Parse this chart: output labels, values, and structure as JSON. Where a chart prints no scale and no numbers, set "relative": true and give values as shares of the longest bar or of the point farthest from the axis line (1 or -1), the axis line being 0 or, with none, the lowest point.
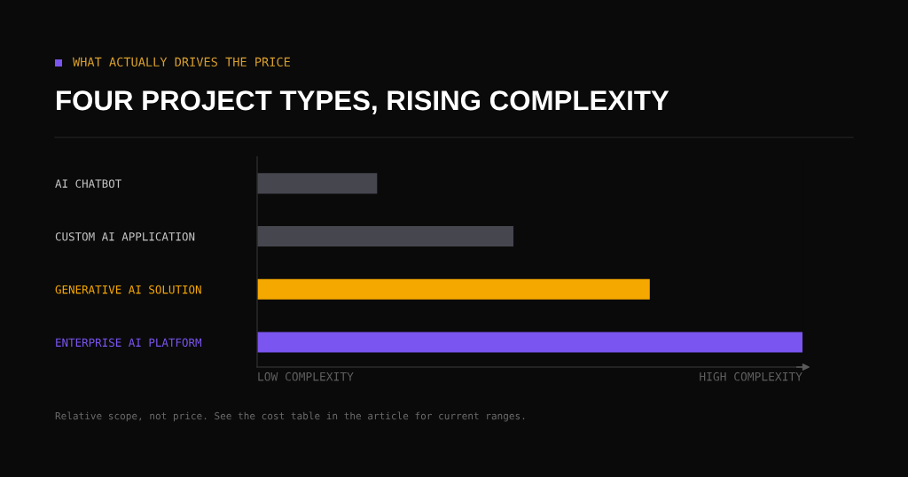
{
  "chart_data": {
    "type": "bar",
    "orientation": "horizontal",
    "relative": true,
    "subtitle": "WHAT ACTUALLY DRIVES THE PRICE",
    "title": "FOUR PROJECT TYPES, RISING COMPLEXITY",
    "categories": [
      "AI CHATBOT",
      "CUSTOM AI APPLICATION",
      "GENERATIVE AI SOLUTION",
      "ENTERPRISE AI PLATFORM"
    ],
    "values": [
      0.22,
      0.47,
      0.72,
      1
    ],
    "colors": [
      "#46464f",
      "#46464f",
      "#f5a800",
      "#7b55ef"
    ],
    "annotations": [
      "LOW COMPLEXITY",
      "HIGH COMPLEXITY",
      "Relative scope, not price. See the cost table in the article for current ranges."
    ]
  }
}
